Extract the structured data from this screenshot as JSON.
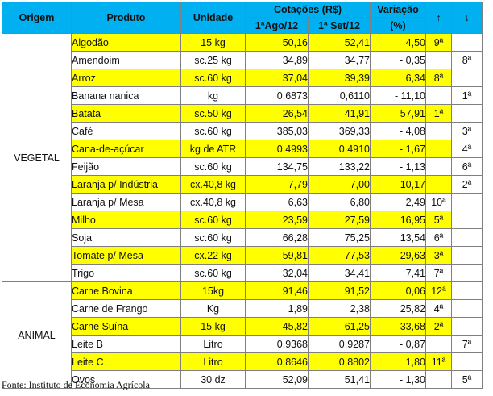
{
  "headers": {
    "origem": "Origem",
    "produto": "Produto",
    "unidade": "Unidade",
    "cotacoes": "Cotações (R$)",
    "ago": "1ªAgo/12",
    "set": "1ª Set/12",
    "variacao": "Variação",
    "pct": "(%)",
    "up": "↑",
    "down": "↓"
  },
  "groups": {
    "vegetal": "VEGETAL",
    "animal": "ANIMAL"
  },
  "rows": [
    {
      "produto": "Algodão",
      "unidade": "15 kg",
      "ago": "50,16",
      "set": "52,41",
      "var": "4,50",
      "up": "9ª",
      "down": ""
    },
    {
      "produto": "Amendoim",
      "unidade": "sc.25 kg",
      "ago": "34,89",
      "set": "34,77",
      "var": "- 0,35",
      "up": "",
      "down": "8ª"
    },
    {
      "produto": "Arroz",
      "unidade": "sc.60 kg",
      "ago": "37,04",
      "set": "39,39",
      "var": "6,34",
      "up": "8ª",
      "down": ""
    },
    {
      "produto": "Banana nanica",
      "unidade": "kg",
      "ago": "0,6873",
      "set": "0,6110",
      "var": "- 11,10",
      "up": "",
      "down": "1ª"
    },
    {
      "produto": "Batata",
      "unidade": "sc.50 kg",
      "ago": "26,54",
      "set": "41,91",
      "var": "57,91",
      "up": "1ª",
      "down": ""
    },
    {
      "produto": "Café",
      "unidade": "sc.60 kg",
      "ago": "385,03",
      "set": "369,33",
      "var": "- 4,08",
      "up": "",
      "down": "3ª"
    },
    {
      "produto": "Cana-de-açúcar",
      "unidade": "kg de ATR",
      "ago": "0,4993",
      "set": "0,4910",
      "var": "- 1,67",
      "up": "",
      "down": "4ª"
    },
    {
      "produto": "Feijão",
      "unidade": "sc.60 kg",
      "ago": "134,75",
      "set": "133,22",
      "var": "- 1,13",
      "up": "",
      "down": "6ª"
    },
    {
      "produto": "Laranja p/ Indústria",
      "unidade": "cx.40,8 kg",
      "ago": "7,79",
      "set": "7,00",
      "var": "- 10,17",
      "up": "",
      "down": "2ª"
    },
    {
      "produto": "Laranja p/ Mesa",
      "unidade": "cx.40,8 kg",
      "ago": "6,63",
      "set": "6,80",
      "var": "2,49",
      "up": "10ª",
      "down": ""
    },
    {
      "produto": "Milho",
      "unidade": "sc.60 kg",
      "ago": "23,59",
      "set": "27,59",
      "var": "16,95",
      "up": "5ª",
      "down": ""
    },
    {
      "produto": "Soja",
      "unidade": "sc.60 kg",
      "ago": "66,28",
      "set": "75,25",
      "var": "13,54",
      "up": "6ª",
      "down": ""
    },
    {
      "produto": "Tomate p/ Mesa",
      "unidade": "cx.22 kg",
      "ago": "59,81",
      "set": "77,53",
      "var": "29,63",
      "up": "3ª",
      "down": ""
    },
    {
      "produto": "Trigo",
      "unidade": "sc.60 kg",
      "ago": "32,04",
      "set": "34,41",
      "var": "7,41",
      "up": "7ª",
      "down": ""
    },
    {
      "produto": "Carne Bovina",
      "unidade": "15kg",
      "ago": "91,46",
      "set": "91,52",
      "var": "0,06",
      "up": "12ª",
      "down": ""
    },
    {
      "produto": "Carne de Frango",
      "unidade": "Kg",
      "ago": "1,89",
      "set": "2,38",
      "var": "25,82",
      "up": "4ª",
      "down": ""
    },
    {
      "produto": "Carne Suína",
      "unidade": "15 kg",
      "ago": "45,82",
      "set": "61,25",
      "var": "33,68",
      "up": "2ª",
      "down": ""
    },
    {
      "produto": "Leite B",
      "unidade": "Litro",
      "ago": "0,9368",
      "set": "0,9287",
      "var": "- 0,87",
      "up": "",
      "down": "7ª"
    },
    {
      "produto": "Leite C",
      "unidade": "Litro",
      "ago": "0,8646",
      "set": "0,8802",
      "var": "1,80",
      "up": "11ª",
      "down": ""
    },
    {
      "produto": "Ovos",
      "unidade": "30 dz",
      "ago": "52,09",
      "set": "51,41",
      "var": "- 1,30",
      "up": "",
      "down": "5ª"
    }
  ],
  "source": "Fonte: Instituto de Economia Agrícola",
  "colors": {
    "header_bg": "#00b0f0",
    "header_text": "#1f2f8a",
    "highlight": "#ffff00",
    "negative": "#e0141e",
    "positive": "#1f3fbf"
  }
}
